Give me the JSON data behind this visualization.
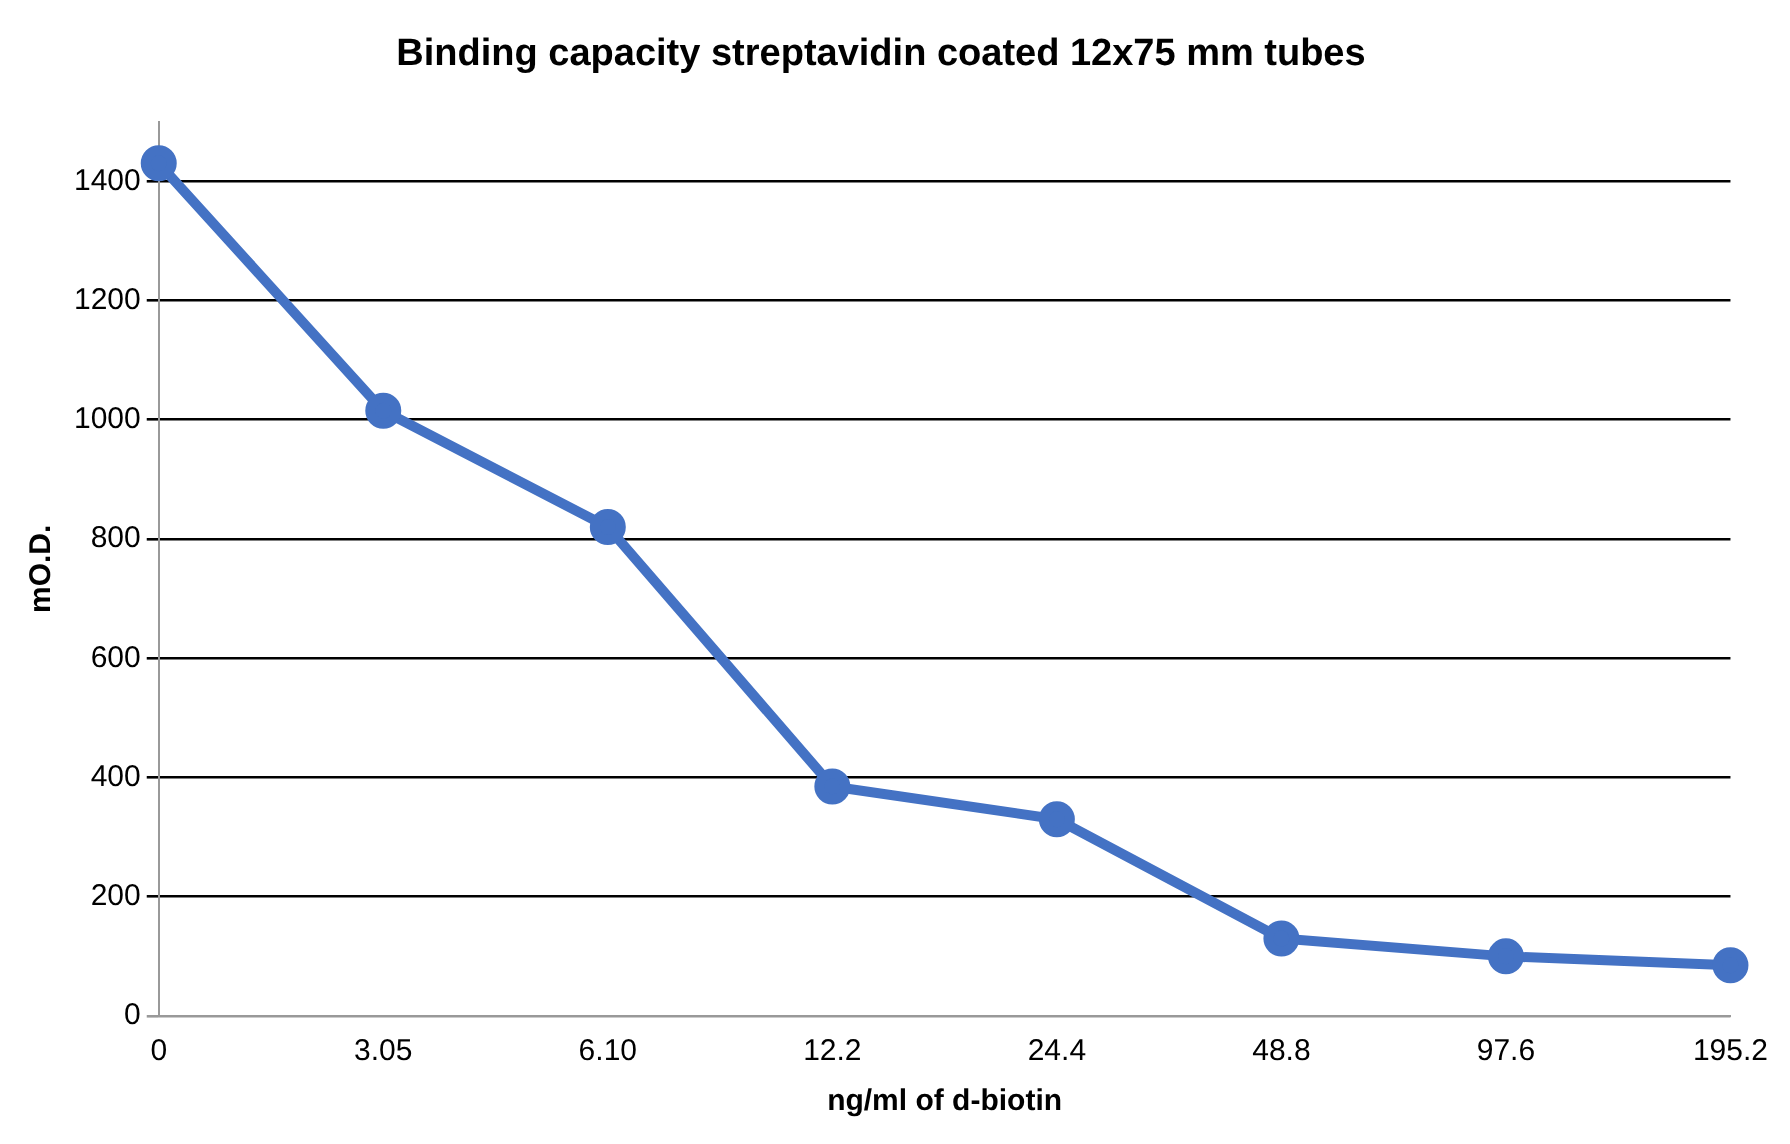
{
  "chart_data": {
    "type": "line",
    "title": "Binding capacity streptavidin coated 12x75 mm tubes",
    "xlabel": "ng/ml of d-biotin",
    "ylabel": "mO.D.",
    "categories": [
      "0",
      "3.05",
      "6.10",
      "12.2",
      "24.4",
      "48.8",
      "97.6",
      "195.2"
    ],
    "series": [
      {
        "color": "#4472c4",
        "values": [
          1430,
          1015,
          820,
          385,
          330,
          130,
          100,
          85
        ]
      }
    ],
    "ylim": [
      0,
      1500
    ],
    "yticks": [
      0,
      200,
      400,
      600,
      800,
      1000,
      1200,
      1400
    ],
    "grid": "y",
    "legend": false,
    "marker": "circle",
    "line_style": "solid"
  }
}
